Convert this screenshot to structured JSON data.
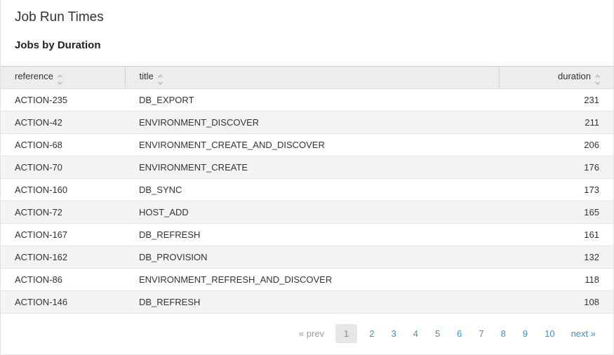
{
  "page": {
    "title": "Job Run Times",
    "subtitle": "Jobs by Duration"
  },
  "table": {
    "columns": [
      {
        "label": "reference"
      },
      {
        "label": "title"
      },
      {
        "label": "duration"
      }
    ],
    "rows": [
      {
        "reference": "ACTION-235",
        "title": "DB_EXPORT",
        "duration": "231"
      },
      {
        "reference": "ACTION-42",
        "title": "ENVIRONMENT_DISCOVER",
        "duration": "211"
      },
      {
        "reference": "ACTION-68",
        "title": "ENVIRONMENT_CREATE_AND_DISCOVER",
        "duration": "206"
      },
      {
        "reference": "ACTION-70",
        "title": "ENVIRONMENT_CREATE",
        "duration": "176"
      },
      {
        "reference": "ACTION-160",
        "title": "DB_SYNC",
        "duration": "173"
      },
      {
        "reference": "ACTION-72",
        "title": "HOST_ADD",
        "duration": "165"
      },
      {
        "reference": "ACTION-167",
        "title": "DB_REFRESH",
        "duration": "161"
      },
      {
        "reference": "ACTION-162",
        "title": "DB_PROVISION",
        "duration": "132"
      },
      {
        "reference": "ACTION-86",
        "title": "ENVIRONMENT_REFRESH_AND_DISCOVER",
        "duration": "118"
      },
      {
        "reference": "ACTION-146",
        "title": "DB_REFRESH",
        "duration": "108"
      }
    ]
  },
  "pagination": {
    "prev_label": "« prev",
    "next_label": "next »",
    "current_page": "1",
    "pages": [
      "1",
      "2",
      "3",
      "4",
      "5",
      "6",
      "7",
      "8",
      "9",
      "10"
    ]
  },
  "colors": {
    "link_blue": "#3d8fcc",
    "muted_gray": "#9b9b9b",
    "header_bg": "#ededed",
    "alt_row_bg": "#f4f4f4"
  }
}
